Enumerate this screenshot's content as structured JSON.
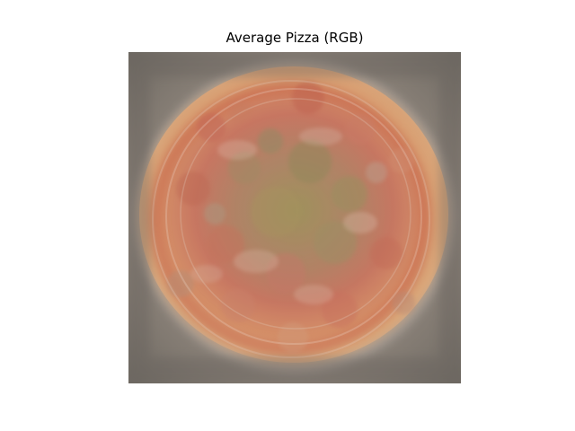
{
  "figure": {
    "title": "Average Pizza (RGB)"
  },
  "image": {
    "subject": "averaged-pizza-image",
    "colors": {
      "background": "#7f786f",
      "crust": "#d9a071",
      "sauce": "#c8674f",
      "topping": "#9c8a55",
      "cheese": "#d8b59a",
      "shadow": "#6f6a63"
    }
  }
}
